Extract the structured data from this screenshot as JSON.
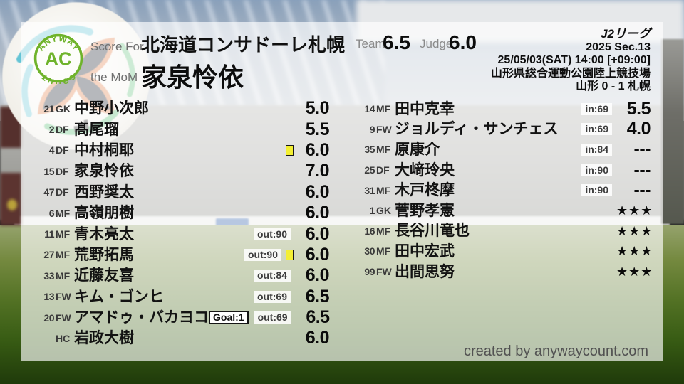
{
  "logo": {
    "arc_top": "ANYWAY",
    "center": "AC",
    "arc_bottom": "COUNT"
  },
  "header": {
    "score_for_label": "Score For",
    "team_name": "北海道コンサドーレ札幌",
    "mom_label": "the MoM",
    "mom_name": "家泉怜依",
    "team_label": "Team",
    "team_score": "6.5",
    "judge_label": "Judge",
    "judge_score": "6.0",
    "match_info": {
      "league": "J2リーグ",
      "season": "2025 Sec.13",
      "kickoff": "25/05/03(SAT) 14:00 [+09:00]",
      "venue": "山形県総合運動公園陸上競技場",
      "result": "山形 0 - 1 札幌"
    }
  },
  "starters": [
    {
      "num": "21",
      "pos": "GK",
      "name": "中野小次郎",
      "rating": "5.0"
    },
    {
      "num": "2",
      "pos": "DF",
      "name": "髙尾瑠",
      "rating": "5.5"
    },
    {
      "num": "4",
      "pos": "DF",
      "name": "中村桐耶",
      "rating": "6.0",
      "card": true
    },
    {
      "num": "15",
      "pos": "DF",
      "name": "家泉怜依",
      "rating": "7.0"
    },
    {
      "num": "47",
      "pos": "DF",
      "name": "西野奨太",
      "rating": "6.0"
    },
    {
      "num": "6",
      "pos": "MF",
      "name": "高嶺朋樹",
      "rating": "6.0"
    },
    {
      "num": "11",
      "pos": "MF",
      "name": "青木亮太",
      "rating": "6.0",
      "sub": "out:90"
    },
    {
      "num": "27",
      "pos": "MF",
      "name": "荒野拓馬",
      "rating": "6.0",
      "sub": "out:90",
      "card": true
    },
    {
      "num": "33",
      "pos": "MF",
      "name": "近藤友喜",
      "rating": "6.0",
      "sub": "out:84"
    },
    {
      "num": "13",
      "pos": "FW",
      "name": "キム・ゴンヒ",
      "rating": "6.5",
      "sub": "out:69"
    },
    {
      "num": "20",
      "pos": "FW",
      "name": "アマドゥ・バカヨコ",
      "rating": "6.5",
      "sub": "out:69",
      "goal": "Goal:1"
    },
    {
      "num": "",
      "pos": "HC",
      "name": "岩政大樹",
      "rating": "6.0"
    }
  ],
  "bench": [
    {
      "num": "14",
      "pos": "MF",
      "name": "田中克幸",
      "rating": "5.5",
      "sub": "in:69"
    },
    {
      "num": "9",
      "pos": "FW",
      "name": "ジョルディ・サンチェス",
      "rating": "4.0",
      "sub": "in:69"
    },
    {
      "num": "35",
      "pos": "MF",
      "name": "原康介",
      "rating": "---",
      "sub": "in:84"
    },
    {
      "num": "25",
      "pos": "DF",
      "name": "大﨑玲央",
      "rating": "---",
      "sub": "in:90"
    },
    {
      "num": "31",
      "pos": "MF",
      "name": "木戸柊摩",
      "rating": "---",
      "sub": "in:90"
    },
    {
      "num": "1",
      "pos": "GK",
      "name": "菅野孝憲",
      "rating": "★★★"
    },
    {
      "num": "16",
      "pos": "MF",
      "name": "長谷川竜也",
      "rating": "★★★"
    },
    {
      "num": "30",
      "pos": "MF",
      "name": "田中宏武",
      "rating": "★★★"
    },
    {
      "num": "99",
      "pos": "FW",
      "name": "出間思努",
      "rating": "★★★"
    }
  ],
  "footer": {
    "credit": "created by anywaycount.com"
  },
  "colors": {
    "accent_green": "#6fb32b",
    "card_yellow": "#f3ef33",
    "ball_orange": "#e2814b",
    "ball_teal": "#54bfd2",
    "ball_green": "#4cb96a"
  }
}
